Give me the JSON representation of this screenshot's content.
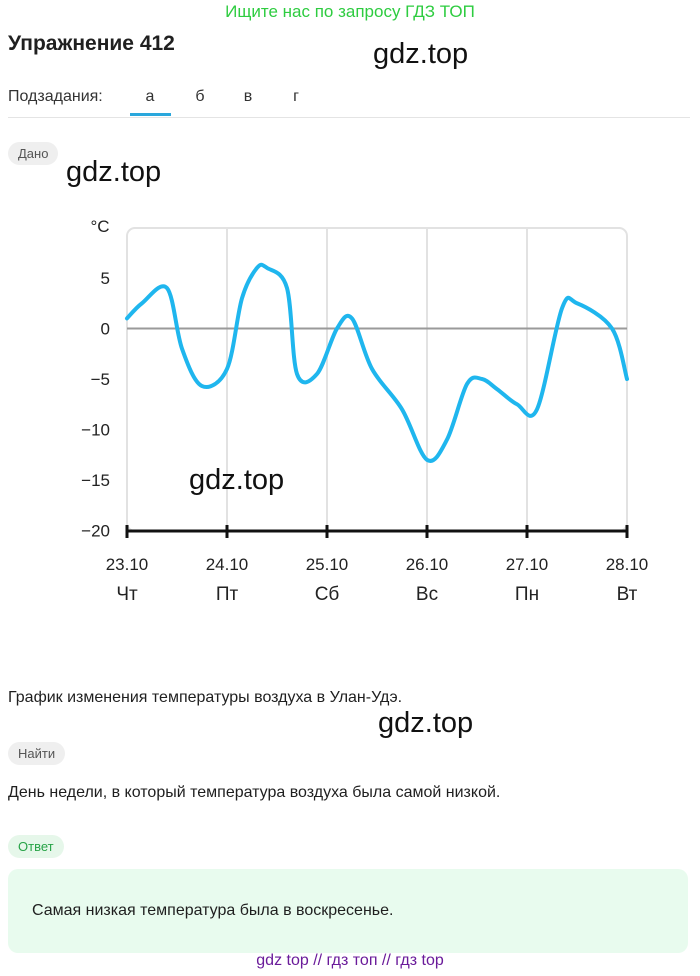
{
  "promo": "Ищите нас по запросу ГДЗ ТОП",
  "title": "Упражнение 412",
  "watermark": "gdz.top",
  "subtasks": {
    "label": "Подзадания:",
    "tabs": [
      "а",
      "б",
      "в",
      "г"
    ],
    "active": 0
  },
  "given": {
    "label": "Дано",
    "caption": "График изменения температуры воздуха в Улан-Удэ."
  },
  "find": {
    "label": "Найти",
    "text": "День недели, в который температура воздуха была самой низкой."
  },
  "answer": {
    "label": "Ответ",
    "text": "Самая низкая температура была в воскресенье."
  },
  "footer": "gdz top  //  гдз топ  //  гдз top",
  "colors": {
    "line": "#1fb6ee",
    "zero_line": "#9a9a9a",
    "grid": "#e2e2e2",
    "promo": "#2ecc40",
    "accent": "#2aa7dc",
    "answer_bg": "#e8fbee"
  },
  "chart_data": {
    "type": "line",
    "title": "",
    "ylabel": "°C",
    "xlabel": "",
    "ylim": [
      -20,
      10
    ],
    "yticks": [
      5,
      0,
      -5,
      -10,
      -15,
      -20
    ],
    "grid": true,
    "categories": [
      "23.10",
      "24.10",
      "25.10",
      "26.10",
      "27.10",
      "28.10"
    ],
    "weekdays": [
      "Чт",
      "Пт",
      "Сб",
      "Вс",
      "Пн",
      "Вт"
    ],
    "series": [
      {
        "x": [
          0,
          0.15,
          0.4,
          0.55,
          0.75,
          1.0,
          1.15,
          1.3,
          1.4,
          1.6,
          1.7,
          1.9,
          2.1,
          2.25,
          2.45,
          2.75,
          3.0,
          3.2,
          3.4,
          3.55,
          3.7,
          3.9,
          4.1,
          4.35,
          4.5,
          4.85,
          5.0
        ],
        "y": [
          1,
          2.5,
          4,
          -2,
          -5.7,
          -4,
          3,
          6,
          6,
          4,
          -4.5,
          -4.5,
          0,
          1,
          -4,
          -8,
          -13,
          -11,
          -5.5,
          -5,
          -6,
          -7.5,
          -8,
          2,
          2.5,
          0,
          -5
        ]
      }
    ]
  }
}
